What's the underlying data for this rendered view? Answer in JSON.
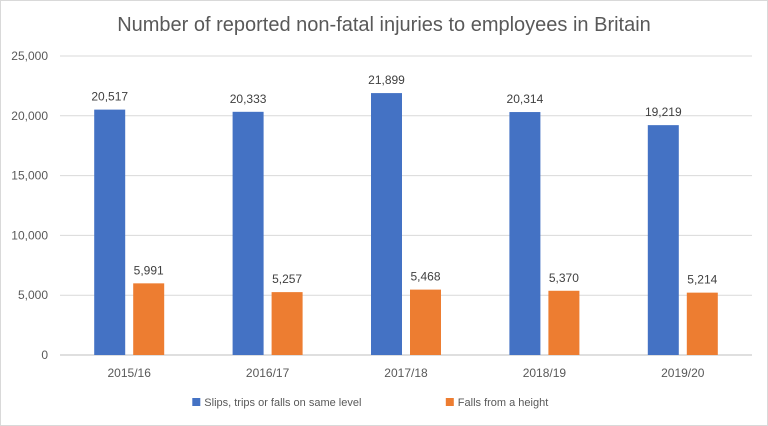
{
  "chart_data": {
    "type": "bar",
    "title": "Number of reported non-fatal injuries to employees in Britain",
    "xlabel": "",
    "ylabel": "",
    "categories": [
      "2015/16",
      "2016/17",
      "2017/18",
      "2018/19",
      "2019/20"
    ],
    "series": [
      {
        "name": "Slips, trips or falls on same level",
        "color": "#4472c4",
        "values": [
          20517,
          20333,
          21899,
          20314,
          19219
        ]
      },
      {
        "name": "Falls from a height",
        "color": "#ed7d31",
        "values": [
          5991,
          5257,
          5468,
          5370,
          5214
        ]
      }
    ],
    "ylim": [
      0,
      25000
    ],
    "yticks": [
      0,
      5000,
      10000,
      15000,
      20000,
      25000
    ],
    "grid": true,
    "legend": "bottom",
    "data_labels": true
  }
}
